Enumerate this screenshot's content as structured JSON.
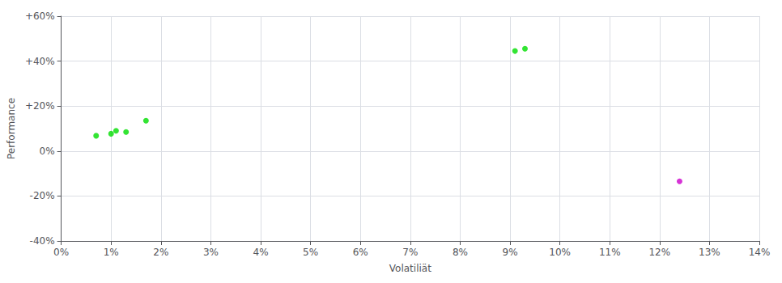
{
  "chart_data": {
    "type": "scatter",
    "xlabel": "Volatiliät",
    "ylabel": "Performance",
    "xlim": [
      0,
      0.14
    ],
    "ylim": [
      -0.4,
      0.6
    ],
    "xticks": [
      {
        "value": 0.0,
        "label": "0%"
      },
      {
        "value": 0.01,
        "label": "1%"
      },
      {
        "value": 0.02,
        "label": "2%"
      },
      {
        "value": 0.03,
        "label": "3%"
      },
      {
        "value": 0.04,
        "label": "4%"
      },
      {
        "value": 0.05,
        "label": "5%"
      },
      {
        "value": 0.06,
        "label": "6%"
      },
      {
        "value": 0.07,
        "label": "7%"
      },
      {
        "value": 0.08,
        "label": "8%"
      },
      {
        "value": 0.09,
        "label": "9%"
      },
      {
        "value": 0.1,
        "label": "10%"
      },
      {
        "value": 0.11,
        "label": "11%"
      },
      {
        "value": 0.12,
        "label": "12%"
      },
      {
        "value": 0.13,
        "label": "13%"
      },
      {
        "value": 0.14,
        "label": "14%"
      }
    ],
    "yticks": [
      {
        "value": -0.4,
        "label": "-40%"
      },
      {
        "value": -0.2,
        "label": "-20%"
      },
      {
        "value": 0.0,
        "label": "0%"
      },
      {
        "value": 0.2,
        "label": "+20%"
      },
      {
        "value": 0.4,
        "label": "+40%"
      },
      {
        "value": 0.6,
        "label": "+60%"
      }
    ],
    "grid": true,
    "series": [
      {
        "color": "#00dd00",
        "values": [
          [
            0.007,
            0.068
          ],
          [
            0.01,
            0.077
          ],
          [
            0.011,
            0.09
          ],
          [
            0.013,
            0.085
          ],
          [
            0.017,
            0.135
          ],
          [
            0.091,
            0.445
          ],
          [
            0.093,
            0.455
          ]
        ]
      },
      {
        "color": "#cc00cc",
        "values": [
          [
            0.124,
            -0.135
          ]
        ]
      }
    ]
  }
}
